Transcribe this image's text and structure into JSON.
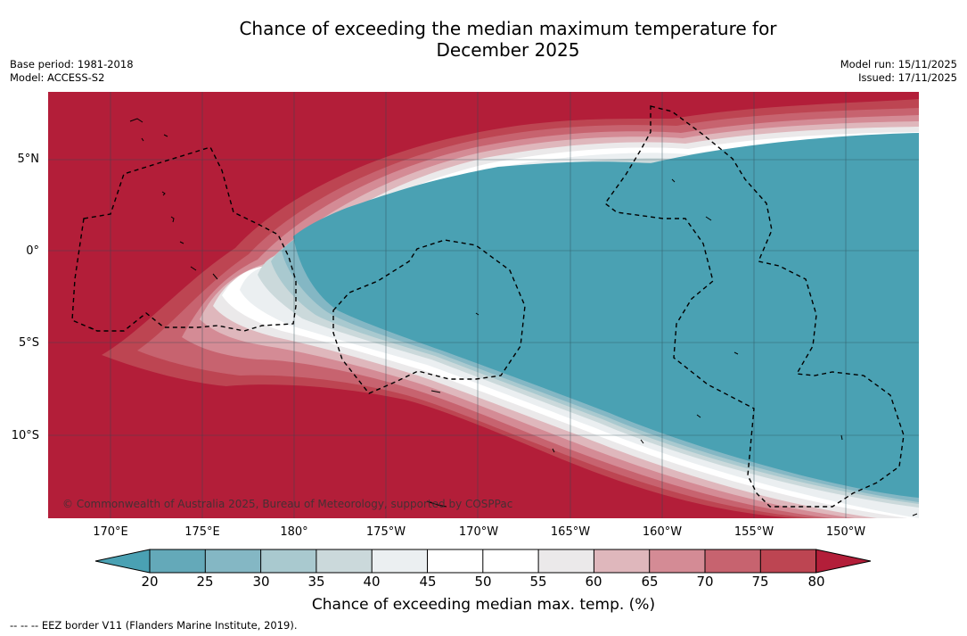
{
  "title_line1": "Chance of exceeding the median maximum temperature for",
  "title_line2": "December 2025",
  "meta": {
    "base_period": "Base period: 1981-2018",
    "model": "Model: ACCESS-S2",
    "model_run": "Model run: 15/11/2025",
    "issued": "Issued: 17/11/2025"
  },
  "copyright": "© Commonwealth of Australia 2025, Bureau of Meteorology, supported by COSPPac",
  "footnote": "--  --  -- EEZ border V11 (Flanders Marine Institute, 2019).",
  "map": {
    "lat_labels": [
      "5°N",
      "0°",
      "5°S",
      "10°S"
    ],
    "lon_labels": [
      "170°E",
      "175°E",
      "180°",
      "175°W",
      "170°W",
      "165°W",
      "160°W",
      "155°W",
      "150°W"
    ]
  },
  "colorbar": {
    "label": "Chance of exceeding median max. temp. (%)",
    "ticks": [
      "20",
      "25",
      "30",
      "35",
      "40",
      "45",
      "50",
      "55",
      "60",
      "65",
      "70",
      "75",
      "80"
    ],
    "colors": {
      "below20": "#4aa1b3",
      "20-25": "#64a9b9",
      "25-30": "#84b7c4",
      "30-35": "#a9c9cf",
      "35-40": "#cbd9db",
      "40-45": "#ebeff1",
      "45-50": "#ffffff",
      "50-55": "#ffffff",
      "55-60": "#ebe9ea",
      "60-65": "#dfb7bc",
      "65-70": "#d48b95",
      "70-75": "#c7636f",
      "75-80": "#bd4552",
      "above80": "#b31e39"
    }
  }
}
